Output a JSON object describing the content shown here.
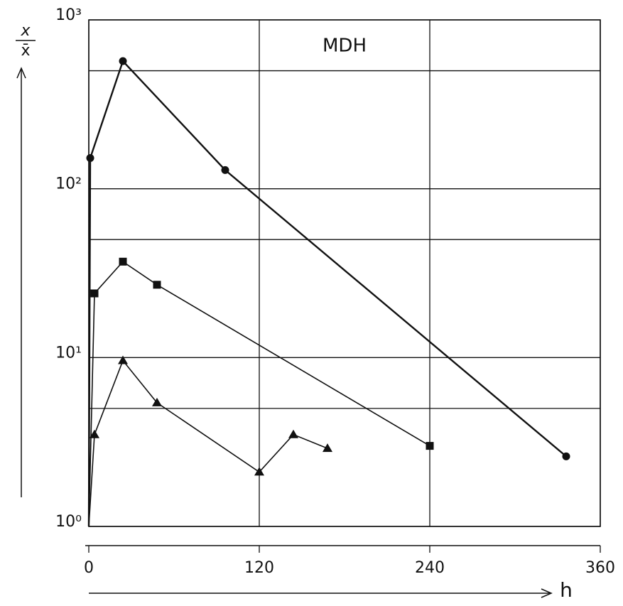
{
  "chart_data": {
    "type": "line",
    "title": "MDH",
    "ylabel": {
      "numerator": "x",
      "denominator": "x̄"
    },
    "xlabel": "h",
    "log_y": true,
    "xlim": [
      0,
      360
    ],
    "xticks": [
      0,
      120,
      240,
      360
    ],
    "ylim": [
      1,
      1000
    ],
    "yticks": [
      {
        "value": 1,
        "label": "10⁰"
      },
      {
        "value": 10,
        "label": "10¹"
      },
      {
        "value": 100,
        "label": "10²"
      },
      {
        "value": 1000,
        "label": "10³"
      }
    ],
    "ygrid": [
      5,
      50,
      500
    ],
    "grid": true,
    "series": [
      {
        "marker": "circle",
        "color": "#111",
        "x": [
          0,
          1,
          24,
          96,
          336
        ],
        "values": [
          1,
          152,
          570,
          129,
          2.6
        ]
      },
      {
        "marker": "square",
        "color": "#111",
        "x": [
          0,
          4,
          24,
          48,
          240
        ],
        "values": [
          1,
          24,
          37,
          27,
          3.0
        ]
      },
      {
        "marker": "triangle",
        "color": "#111",
        "x": [
          0,
          4,
          24,
          48,
          120,
          144,
          168
        ],
        "values": [
          1,
          3.5,
          9.6,
          5.4,
          2.1,
          3.5,
          2.9
        ]
      }
    ]
  }
}
